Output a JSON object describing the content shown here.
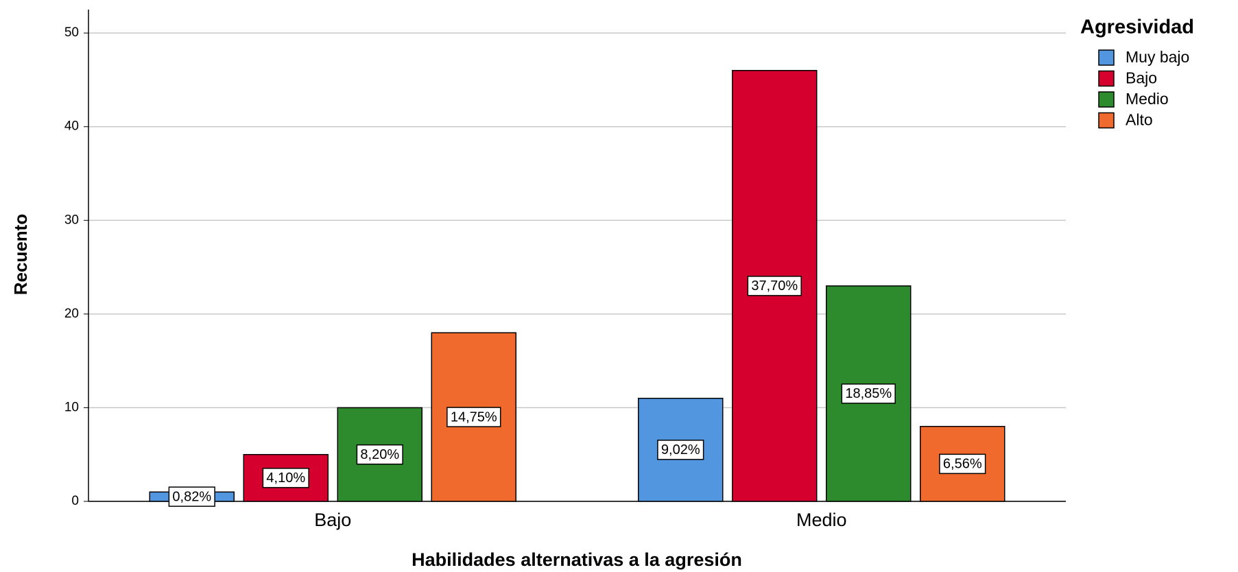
{
  "chart_data": {
    "type": "bar",
    "x_label": "Habilidades alternativas a la agresión",
    "y_label": "Recuento",
    "legend_title": "Agresividad",
    "legend": "top-right",
    "grid": true,
    "categories": [
      "Bajo",
      "Medio"
    ],
    "series": [
      {
        "name": "Muy bajo",
        "color": "#5296e0",
        "values": [
          1,
          11
        ],
        "value_labels": [
          "0,82%",
          "9,02%"
        ]
      },
      {
        "name": "Bajo",
        "color": "#d6002f",
        "values": [
          5,
          46
        ],
        "value_labels": [
          "4,10%",
          "37,70%"
        ]
      },
      {
        "name": "Medio",
        "color": "#2d8a2d",
        "values": [
          10,
          23
        ],
        "value_labels": [
          "8,20%",
          "18,85%"
        ]
      },
      {
        "name": "Alto",
        "color": "#f06a2e",
        "values": [
          18,
          8
        ],
        "value_labels": [
          "14,75%",
          "6,56%"
        ]
      }
    ],
    "ylim": [
      0,
      52.5
    ],
    "yticks": [
      0,
      10,
      20,
      30,
      40,
      50
    ]
  }
}
